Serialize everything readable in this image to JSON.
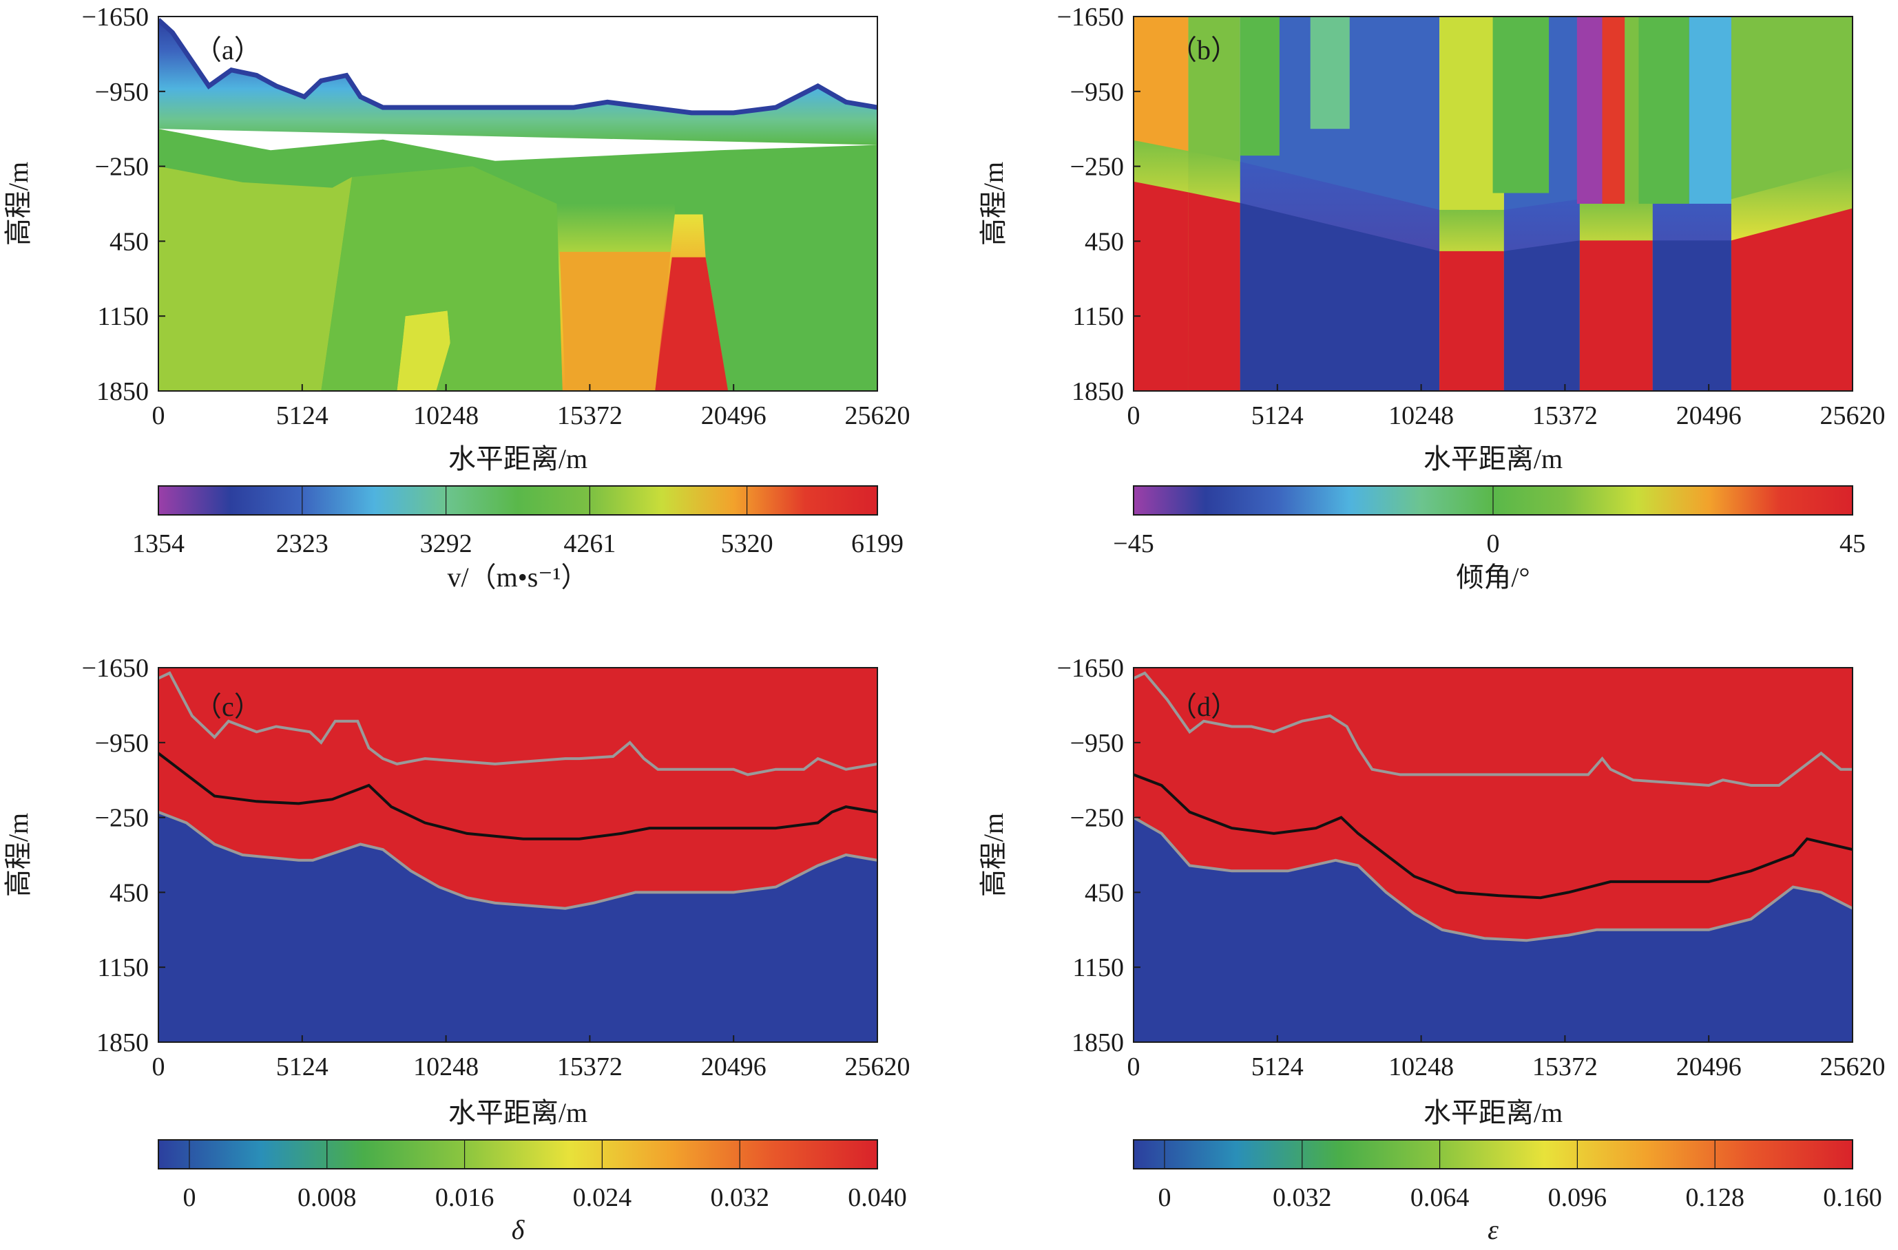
{
  "chart_data": [
    {
      "type": "heatmap",
      "panel_label": "（a）",
      "xlabel": "水平距离/m",
      "ylabel": "高程/m",
      "x_ticks": [
        "0",
        "5124",
        "10248",
        "15372",
        "20496",
        "25620"
      ],
      "y_ticks": [
        "−1650",
        "−950",
        "−250",
        "450",
        "1150",
        "1850"
      ],
      "xlim": [
        0,
        25620
      ],
      "ylim": [
        -1650,
        1850
      ],
      "colorbar": {
        "label": "v/（m•s⁻¹）",
        "ticks": [
          "1354",
          "2323",
          "3292",
          "4261",
          "5320",
          "6199"
        ],
        "range": [
          1354,
          6199
        ],
        "palette": [
          "#9b3fa8",
          "#2c3f9e",
          "#3c65bf",
          "#4fb3df",
          "#6cc48f",
          "#5ab84a",
          "#7cc043",
          "#c9dd3a",
          "#f2a22c",
          "#e23a2a",
          "#d9232a"
        ]
      },
      "surface_elevation": [
        [
          0,
          -1620
        ],
        [
          500,
          -1500
        ],
        [
          1800,
          -1000
        ],
        [
          2600,
          -1150
        ],
        [
          3500,
          -1100
        ],
        [
          4200,
          -1000
        ],
        [
          5200,
          -900
        ],
        [
          5800,
          -1050
        ],
        [
          6700,
          -1100
        ],
        [
          7200,
          -900
        ],
        [
          8000,
          -800
        ],
        [
          10000,
          -800
        ],
        [
          11500,
          -800
        ],
        [
          13500,
          -800
        ],
        [
          14800,
          -800
        ],
        [
          16000,
          -850
        ],
        [
          17500,
          -800
        ],
        [
          19000,
          -750
        ],
        [
          20496,
          -750
        ],
        [
          22000,
          -800
        ],
        [
          23500,
          -1000
        ],
        [
          24500,
          -850
        ],
        [
          25620,
          -800
        ]
      ],
      "regions": [
        {
          "name": "ab-upper",
          "value": 2600
        },
        {
          "name": "ab-mid",
          "value": 4100
        },
        {
          "name": "ab-left-lower",
          "value": 4700
        },
        {
          "name": "ab-green-body",
          "value": 4300
        },
        {
          "name": "ab-yellow-lens",
          "value": 5300
        },
        {
          "name": "ab-orange-body",
          "value": 5700
        },
        {
          "name": "ab-red-body",
          "value": 6199
        }
      ]
    },
    {
      "type": "heatmap",
      "panel_label": "（b）",
      "xlabel": "水平距离/m",
      "ylabel": "高程/m",
      "x_ticks": [
        "0",
        "5124",
        "10248",
        "15372",
        "20496",
        "25620"
      ],
      "y_ticks": [
        "−1650",
        "−950",
        "−250",
        "450",
        "1150",
        "1850"
      ],
      "xlim": [
        0,
        25620
      ],
      "ylim": [
        -1650,
        1850
      ],
      "colorbar": {
        "label": "倾角/°",
        "ticks": [
          "−45",
          "0",
          "45"
        ],
        "range": [
          -45,
          45
        ],
        "palette": [
          "#9b3fa8",
          "#2c3f9e",
          "#3c65bf",
          "#4fb3df",
          "#6cc48f",
          "#5ab84a",
          "#7cc043",
          "#c9dd3a",
          "#f2a22c",
          "#e23a2a",
          "#d9232a"
        ]
      },
      "columns": [
        {
          "x": [
            0,
            1950
          ],
          "upper_dip": 30,
          "lower_dip": 45
        },
        {
          "x": [
            1950,
            3800
          ],
          "upper_dip": 5,
          "lower_dip": 45
        },
        {
          "x": [
            3800,
            10900
          ],
          "upper_dip": -25,
          "lower_dip": -38
        },
        {
          "x": [
            10900,
            13200
          ],
          "upper_dip": 20,
          "lower_dip": 45
        },
        {
          "x": [
            13200,
            15900
          ],
          "upper_dip": -25,
          "lower_dip": -38
        },
        {
          "x": [
            15900,
            18500
          ],
          "upper_dip": 5,
          "lower_dip": 45
        },
        {
          "x": [
            18500,
            21300
          ],
          "upper_dip": -25,
          "lower_dip": -38
        },
        {
          "x": [
            21300,
            25620
          ],
          "upper_dip": 5,
          "lower_dip": 45
        }
      ],
      "overlays": [
        {
          "x": [
            3800,
            5200
          ],
          "y_bottom": -350,
          "dip": 0
        },
        {
          "x": [
            6300,
            7700
          ],
          "y_bottom": -600,
          "dip": -5
        },
        {
          "x": [
            12800,
            14800
          ],
          "y_bottom": 0,
          "dip": 0
        },
        {
          "x": [
            15800,
            16700
          ],
          "y_bottom": 100,
          "dip": -45
        },
        {
          "x": [
            16700,
            17500
          ],
          "y_bottom": 100,
          "dip": 40
        },
        {
          "x": [
            18000,
            19800
          ],
          "y_bottom": 100,
          "dip": 0
        },
        {
          "x": [
            19800,
            21300
          ],
          "y_bottom": 100,
          "dip": -22
        }
      ]
    },
    {
      "type": "heatmap",
      "panel_label": "（c）",
      "xlabel": "水平距离/m",
      "ylabel": "高程/m",
      "x_ticks": [
        "0",
        "5124",
        "10248",
        "15372",
        "20496",
        "25620"
      ],
      "y_ticks": [
        "−1650",
        "−950",
        "−250",
        "450",
        "1150",
        "1850"
      ],
      "xlim": [
        0,
        25620
      ],
      "ylim": [
        -1650,
        1850
      ],
      "colorbar": {
        "label": "δ",
        "ticks": [
          "0",
          "0.008",
          "0.016",
          "0.024",
          "0.032",
          "0.040"
        ],
        "range": [
          -0.0018,
          0.04
        ],
        "palette": [
          "#2c3f9e",
          "#2a8fb8",
          "#4aae4a",
          "#8dc63f",
          "#e8e23a",
          "#f2a22c",
          "#e8572a",
          "#d9232a"
        ]
      },
      "upper_value": 0.04,
      "lower_value": 0,
      "grey_top": [
        [
          0,
          -1550
        ],
        [
          400,
          -1600
        ],
        [
          1200,
          -1200
        ],
        [
          2000,
          -1000
        ],
        [
          2500,
          -1150
        ],
        [
          3500,
          -1050
        ],
        [
          4200,
          -1100
        ],
        [
          5400,
          -1050
        ],
        [
          5800,
          -950
        ],
        [
          6300,
          -1150
        ],
        [
          7100,
          -1150
        ],
        [
          7500,
          -900
        ],
        [
          8000,
          -800
        ],
        [
          8500,
          -750
        ],
        [
          9500,
          -800
        ],
        [
          12000,
          -750
        ],
        [
          13500,
          -780
        ],
        [
          14500,
          -800
        ],
        [
          15000,
          -800
        ],
        [
          16200,
          -820
        ],
        [
          16800,
          -950
        ],
        [
          17300,
          -800
        ],
        [
          17800,
          -700
        ],
        [
          20496,
          -700
        ],
        [
          21000,
          -650
        ],
        [
          22000,
          -700
        ],
        [
          23000,
          -700
        ],
        [
          23500,
          -800
        ],
        [
          24500,
          -700
        ],
        [
          25620,
          -750
        ]
      ],
      "black_line": [
        [
          0,
          -850
        ],
        [
          1000,
          -650
        ],
        [
          2000,
          -450
        ],
        [
          3500,
          -400
        ],
        [
          5000,
          -380
        ],
        [
          6200,
          -420
        ],
        [
          7500,
          -550
        ],
        [
          8300,
          -350
        ],
        [
          9500,
          -200
        ],
        [
          11000,
          -100
        ],
        [
          13000,
          -50
        ],
        [
          15000,
          -50
        ],
        [
          16500,
          -100
        ],
        [
          17500,
          -150
        ],
        [
          20496,
          -150
        ],
        [
          22000,
          -150
        ],
        [
          23500,
          -200
        ],
        [
          24000,
          -300
        ],
        [
          24500,
          -350
        ],
        [
          25620,
          -300
        ]
      ],
      "grey_bottom": [
        [
          0,
          -300
        ],
        [
          1000,
          -200
        ],
        [
          2000,
          0
        ],
        [
          3000,
          100
        ],
        [
          5000,
          150
        ],
        [
          5500,
          150
        ],
        [
          7200,
          0
        ],
        [
          8000,
          50
        ],
        [
          9000,
          250
        ],
        [
          10000,
          400
        ],
        [
          11000,
          500
        ],
        [
          12000,
          550
        ],
        [
          14500,
          600
        ],
        [
          15500,
          550
        ],
        [
          17000,
          450
        ],
        [
          20496,
          450
        ],
        [
          22000,
          400
        ],
        [
          23500,
          200
        ],
        [
          24500,
          100
        ],
        [
          25620,
          150
        ]
      ]
    },
    {
      "type": "heatmap",
      "panel_label": "（d）",
      "xlabel": "水平距离/m",
      "ylabel": "高程/m",
      "x_ticks": [
        "0",
        "5124",
        "10248",
        "15372",
        "20496",
        "25620"
      ],
      "y_ticks": [
        "−1650",
        "−950",
        "−250",
        "450",
        "1150",
        "1850"
      ],
      "xlim": [
        0,
        25620
      ],
      "ylim": [
        -1650,
        1850
      ],
      "colorbar": {
        "label": "ε",
        "ticks": [
          "0",
          "0.032",
          "0.064",
          "0.096",
          "0.128",
          "0.160"
        ],
        "range": [
          -0.0072,
          0.16
        ],
        "palette": [
          "#2c3f9e",
          "#2a8fb8",
          "#4aae4a",
          "#8dc63f",
          "#e8e23a",
          "#f2a22c",
          "#e8572a",
          "#d9232a"
        ]
      },
      "upper_value": 0.16,
      "lower_value": 0,
      "grey_top": [
        [
          0,
          -1550
        ],
        [
          400,
          -1600
        ],
        [
          1200,
          -1350
        ],
        [
          2000,
          -1050
        ],
        [
          2500,
          -1150
        ],
        [
          3500,
          -1100
        ],
        [
          4200,
          -1100
        ],
        [
          5000,
          -1050
        ],
        [
          6000,
          -1150
        ],
        [
          7000,
          -1200
        ],
        [
          7600,
          -1100
        ],
        [
          8000,
          -900
        ],
        [
          8500,
          -700
        ],
        [
          9500,
          -650
        ],
        [
          12000,
          -650
        ],
        [
          14000,
          -650
        ],
        [
          15500,
          -650
        ],
        [
          16200,
          -650
        ],
        [
          16700,
          -800
        ],
        [
          17000,
          -700
        ],
        [
          17800,
          -600
        ],
        [
          20496,
          -550
        ],
        [
          21000,
          -600
        ],
        [
          22000,
          -550
        ],
        [
          23000,
          -550
        ],
        [
          23500,
          -650
        ],
        [
          24500,
          -850
        ],
        [
          25200,
          -700
        ],
        [
          25620,
          -700
        ]
      ],
      "black_line": [
        [
          0,
          -650
        ],
        [
          1000,
          -550
        ],
        [
          2000,
          -300
        ],
        [
          3500,
          -150
        ],
        [
          5000,
          -100
        ],
        [
          6500,
          -150
        ],
        [
          7400,
          -250
        ],
        [
          8000,
          -100
        ],
        [
          9000,
          100
        ],
        [
          10000,
          300
        ],
        [
          11500,
          450
        ],
        [
          13000,
          480
        ],
        [
          14500,
          500
        ],
        [
          15500,
          450
        ],
        [
          17000,
          350
        ],
        [
          19000,
          350
        ],
        [
          20496,
          350
        ],
        [
          22000,
          250
        ],
        [
          23500,
          100
        ],
        [
          24000,
          -50
        ],
        [
          25620,
          50
        ]
      ],
      "grey_bottom": [
        [
          0,
          -250
        ],
        [
          1000,
          -100
        ],
        [
          2000,
          200
        ],
        [
          3500,
          250
        ],
        [
          5500,
          250
        ],
        [
          7200,
          150
        ],
        [
          8000,
          200
        ],
        [
          9000,
          450
        ],
        [
          10000,
          650
        ],
        [
          11000,
          800
        ],
        [
          12500,
          880
        ],
        [
          14000,
          900
        ],
        [
          15500,
          850
        ],
        [
          16500,
          800
        ],
        [
          17000,
          800
        ],
        [
          20496,
          800
        ],
        [
          22000,
          700
        ],
        [
          23500,
          400
        ],
        [
          24500,
          450
        ],
        [
          25620,
          600
        ]
      ]
    }
  ]
}
